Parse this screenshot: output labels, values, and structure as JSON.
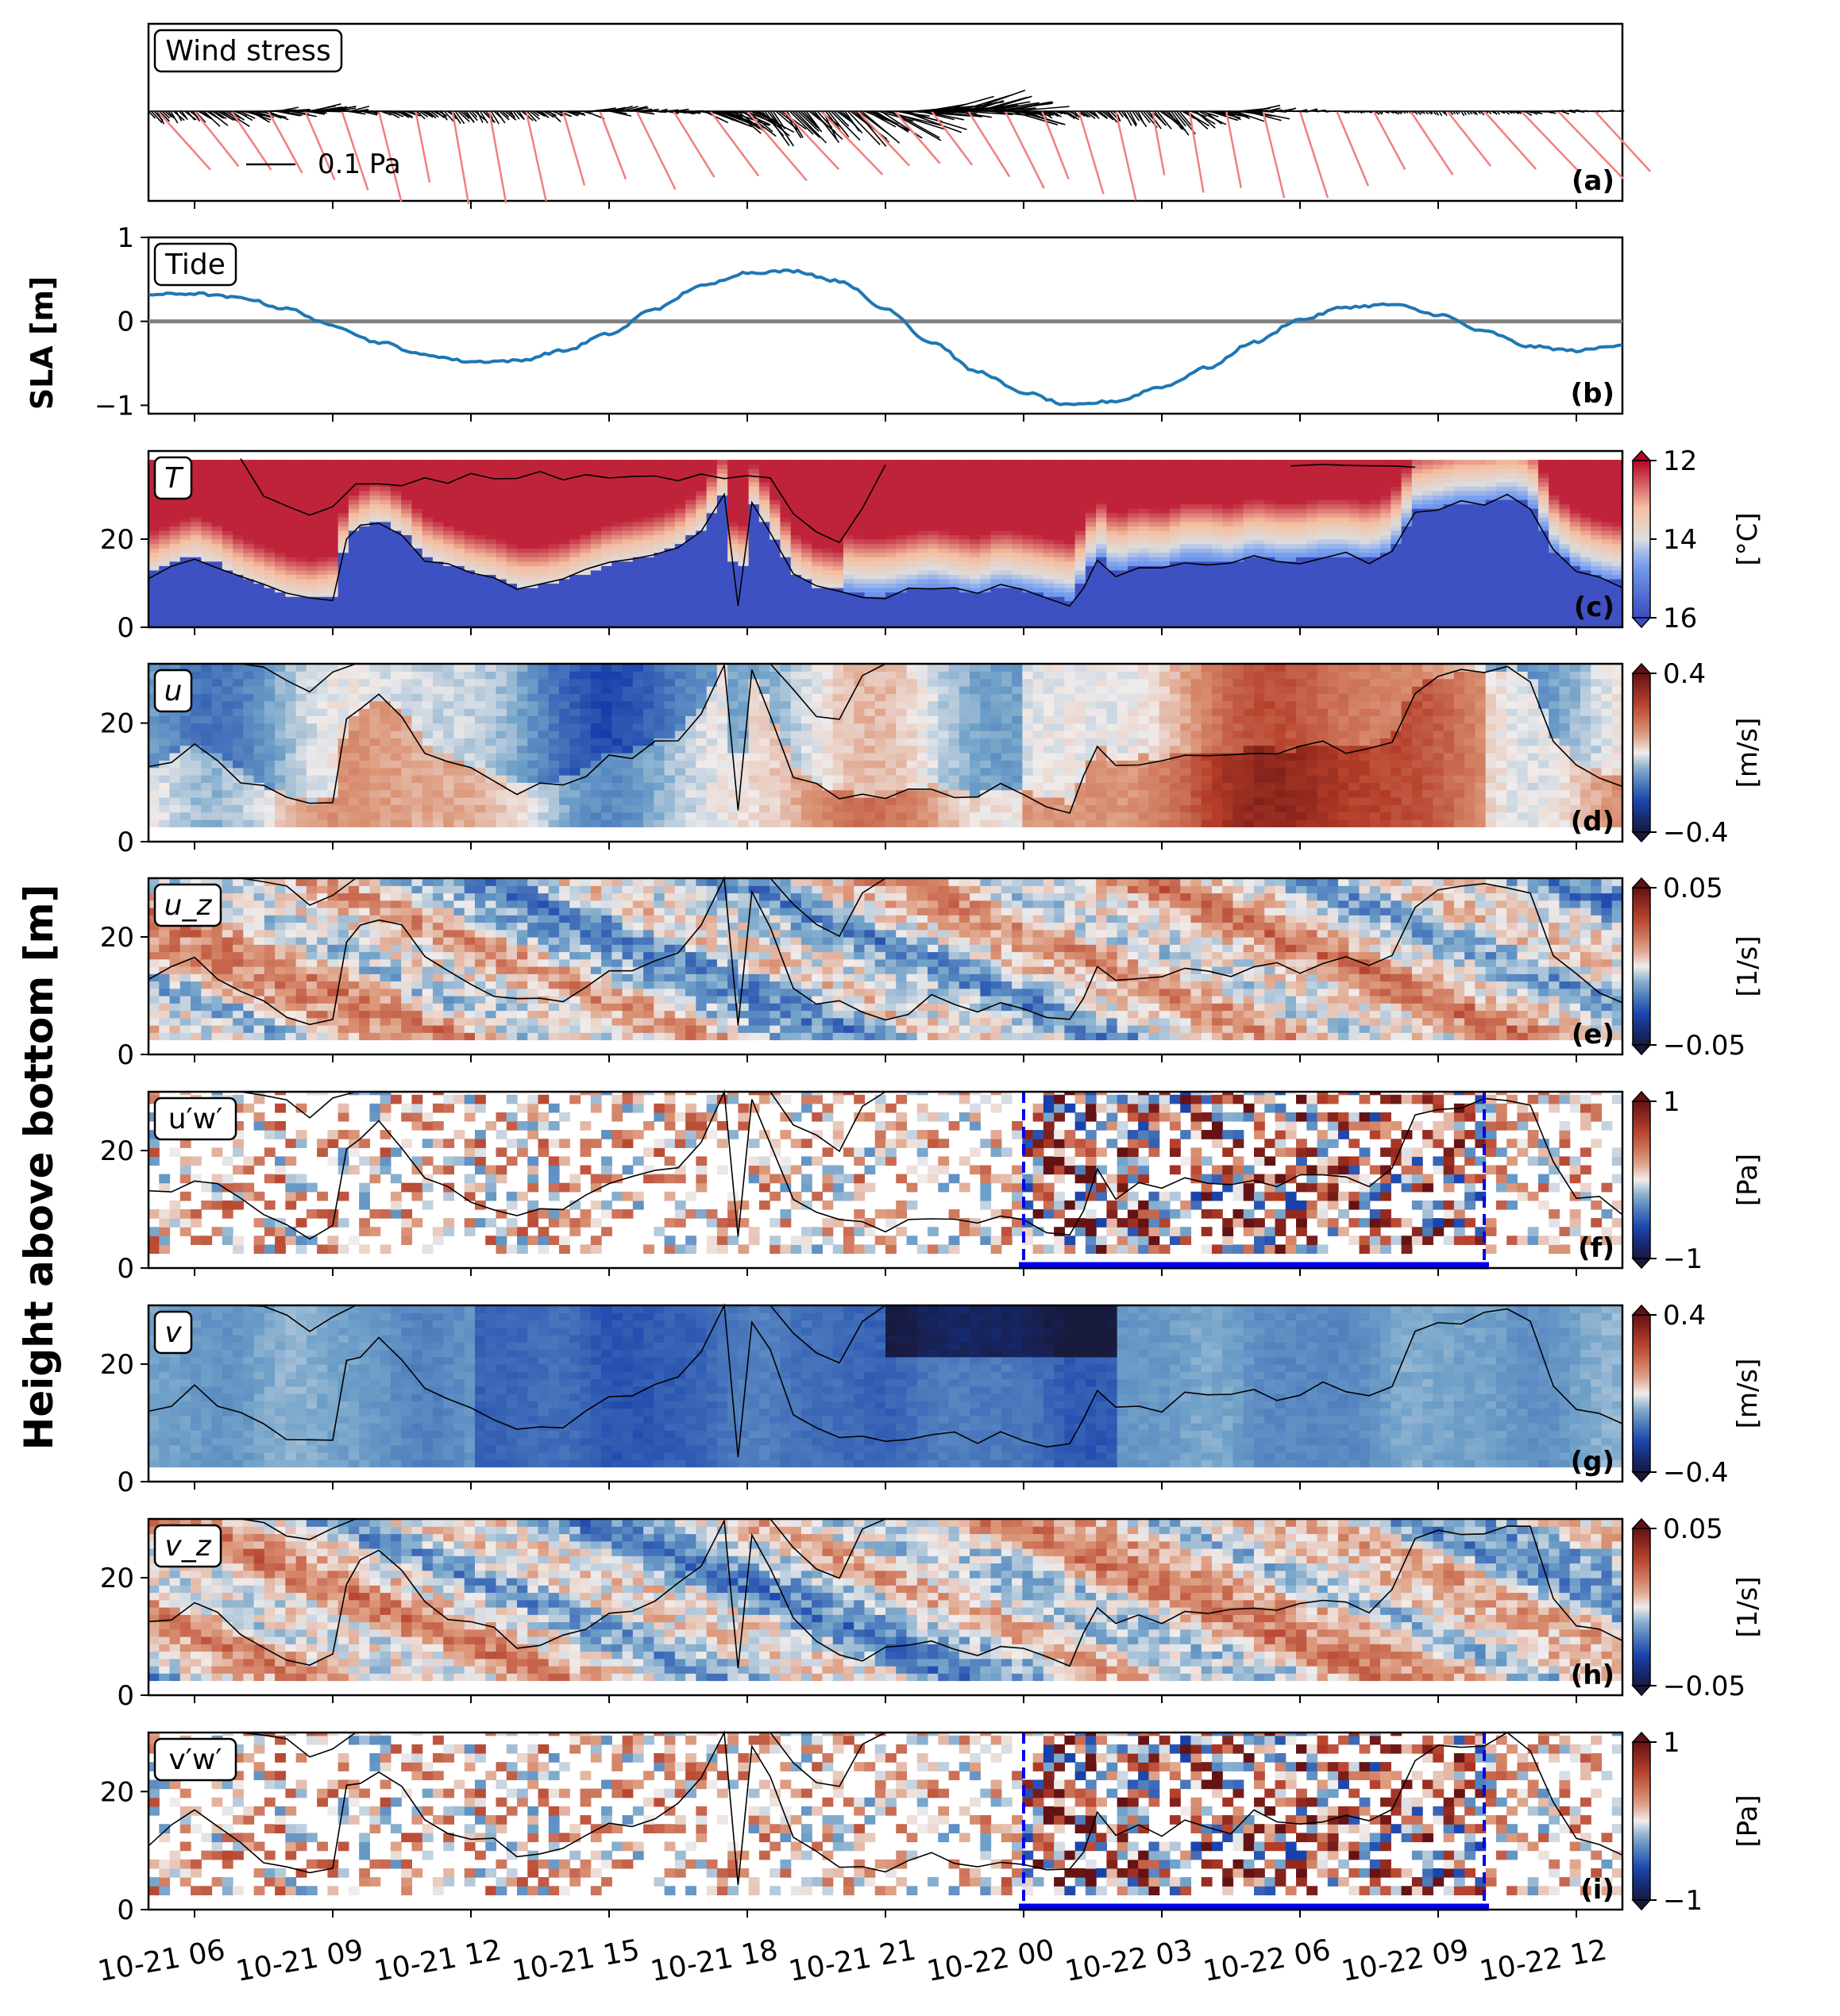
{
  "global_ylabels": {
    "sla": "SLA [m]",
    "height": "Height above bottom [m]"
  },
  "time_axis": {
    "start_hour": 5,
    "end_hour": 37,
    "ticks": [
      {
        "hour": 6,
        "label": "10-21 06"
      },
      {
        "hour": 9,
        "label": "10-21 09"
      },
      {
        "hour": 12,
        "label": "10-21 12"
      },
      {
        "hour": 15,
        "label": "10-21 15"
      },
      {
        "hour": 18,
        "label": "10-21 18"
      },
      {
        "hour": 21,
        "label": "10-21 21"
      },
      {
        "hour": 24,
        "label": "10-22 00"
      },
      {
        "hour": 27,
        "label": "10-22 03"
      },
      {
        "hour": 30,
        "label": "10-22 06"
      },
      {
        "hour": 33,
        "label": "10-22 09"
      },
      {
        "hour": 36,
        "label": "10-22 12"
      }
    ]
  },
  "window_box": {
    "start_hour": 24.0,
    "end_hour": 34.0,
    "color": "#0000ee"
  },
  "chart_data": [
    {
      "id": "a",
      "type": "line",
      "panel_label": "(a)",
      "title": "Wind stress",
      "scale_bar_label": "0.1 Pa",
      "note": "stick plot of wind-stress vectors (black: observed, red: coarse series)"
    },
    {
      "id": "b",
      "type": "line",
      "panel_label": "(b)",
      "title": "Tide",
      "ylim": [
        -1.1,
        1.0
      ],
      "yticks": [
        "1",
        "0",
        "−1"
      ],
      "ytick_values": [
        1,
        0,
        -1
      ],
      "series": [
        {
          "color": "#1f77b4",
          "x": [
            5,
            6,
            7,
            8,
            9,
            10,
            11,
            12,
            13,
            14,
            15,
            16,
            17,
            18,
            19,
            20,
            21,
            22,
            23,
            24,
            25,
            26,
            27,
            28,
            29,
            30,
            31,
            32,
            33,
            34,
            35,
            36,
            37
          ],
          "values": [
            0.32,
            0.33,
            0.28,
            0.15,
            -0.05,
            -0.25,
            -0.4,
            -0.48,
            -0.47,
            -0.35,
            -0.15,
            0.15,
            0.42,
            0.58,
            0.6,
            0.48,
            0.15,
            -0.25,
            -0.6,
            -0.85,
            -1.0,
            -0.95,
            -0.78,
            -0.55,
            -0.25,
            0.02,
            0.17,
            0.2,
            0.08,
            -0.12,
            -0.3,
            -0.35,
            -0.28
          ]
        }
      ],
      "reference_line": {
        "y": 0,
        "color": "#808080"
      }
    },
    {
      "id": "c",
      "type": "heatmap",
      "panel_label": "(c)",
      "title": "T",
      "ylim": [
        0,
        40
      ],
      "yticks": [
        "0",
        "20"
      ],
      "ytick_values": [
        0,
        20
      ],
      "colorbar": {
        "ticks": [
          "12",
          "14",
          "16"
        ],
        "label": "[°C]",
        "cmap": "coolwarm"
      }
    },
    {
      "id": "d",
      "type": "heatmap",
      "panel_label": "(d)",
      "title": "u",
      "ylim": [
        0,
        30
      ],
      "yticks": [
        "0",
        "20"
      ],
      "ytick_values": [
        0,
        20
      ],
      "colorbar": {
        "ticks": [
          "0.4",
          "−0.4"
        ],
        "label": "[m/s]",
        "cmap": "balance"
      }
    },
    {
      "id": "e",
      "type": "heatmap",
      "panel_label": "(e)",
      "title": "u_z",
      "ylim": [
        0,
        30
      ],
      "yticks": [
        "0",
        "20"
      ],
      "ytick_values": [
        0,
        20
      ],
      "colorbar": {
        "ticks": [
          "0.05",
          "−0.05"
        ],
        "label": "[1/s]",
        "cmap": "balance"
      }
    },
    {
      "id": "f",
      "type": "heatmap",
      "panel_label": "(f)",
      "title": "u′w′",
      "ylim": [
        0,
        30
      ],
      "yticks": [
        "0",
        "20"
      ],
      "ytick_values": [
        0,
        20
      ],
      "colorbar": {
        "ticks": [
          "1",
          "−1"
        ],
        "label": "[Pa]",
        "cmap": "balance"
      }
    },
    {
      "id": "g",
      "type": "heatmap",
      "panel_label": "(g)",
      "title": "v",
      "ylim": [
        0,
        30
      ],
      "yticks": [
        "0",
        "20"
      ],
      "ytick_values": [
        0,
        20
      ],
      "colorbar": {
        "ticks": [
          "0.4",
          "−0.4"
        ],
        "label": "[m/s]",
        "cmap": "balance"
      }
    },
    {
      "id": "h",
      "type": "heatmap",
      "panel_label": "(h)",
      "title": "v_z",
      "ylim": [
        0,
        30
      ],
      "yticks": [
        "0",
        "20"
      ],
      "ytick_values": [
        0,
        20
      ],
      "colorbar": {
        "ticks": [
          "0.05",
          "−0.05"
        ],
        "label": "[1/s]",
        "cmap": "balance"
      }
    },
    {
      "id": "i",
      "type": "heatmap",
      "panel_label": "(i)",
      "title": "v′w′",
      "ylim": [
        0,
        30
      ],
      "yticks": [
        "0",
        "20"
      ],
      "ytick_values": [
        0,
        20
      ],
      "colorbar": {
        "ticks": [
          "1",
          "−1"
        ],
        "label": "[Pa]",
        "cmap": "balance"
      }
    }
  ],
  "isotherm_lower": {
    "hours": [
      5,
      5.5,
      6,
      6.5,
      7,
      7.5,
      8,
      8.5,
      9,
      9.3,
      9.6,
      10,
      10.5,
      11,
      11.5,
      12,
      12.5,
      13,
      13.5,
      14,
      14.5,
      15,
      15.5,
      16,
      16.5,
      17,
      17.5,
      17.8,
      18.1,
      18.5,
      19,
      19.5,
      20,
      20.5,
      21,
      21.5,
      22,
      22.5,
      23,
      23.5,
      24,
      24.5,
      25,
      25.3,
      25.6,
      26,
      26.5,
      27,
      27.5,
      28,
      28.5,
      29,
      29.5,
      30,
      30.5,
      31,
      31.5,
      32,
      32.5,
      33,
      33.5,
      34,
      34.5,
      35,
      35.5,
      36,
      36.5,
      37
    ],
    "values": [
      12,
      14,
      16,
      14,
      11,
      9,
      7,
      6,
      7,
      20,
      22,
      24,
      21,
      16,
      14,
      12,
      11,
      9,
      9,
      10,
      12,
      14,
      15,
      16,
      18,
      22,
      30,
      5,
      28,
      22,
      12,
      9,
      8,
      7,
      7,
      8,
      9,
      8,
      7,
      9,
      8,
      7,
      6,
      10,
      16,
      12,
      14,
      13,
      15,
      15,
      14,
      16,
      15,
      15,
      16,
      16,
      15,
      17,
      26,
      27,
      28,
      28,
      29,
      28,
      17,
      13,
      11,
      10
    ]
  },
  "isotherm_upper": {
    "segments": [
      {
        "hours": [
          7,
          7.5,
          8,
          8.5,
          9,
          9.5,
          10,
          10.5,
          11,
          11.5,
          12,
          12.5,
          13,
          13.5,
          14,
          14.5,
          15,
          15.5,
          16,
          16.5,
          17,
          17.5,
          18,
          18.5,
          19,
          19.5,
          20,
          20.5,
          21
        ],
        "values": [
          38,
          30,
          28,
          26,
          28,
          32,
          33,
          32,
          33,
          33,
          34,
          34,
          34,
          35,
          34,
          34,
          34,
          35,
          35,
          34,
          35,
          33,
          35,
          34,
          25,
          22,
          20,
          28,
          36
        ]
      },
      {
        "hours": [
          29.8,
          30.5,
          31,
          31.5,
          32,
          32.5
        ],
        "values": [
          37,
          36,
          36,
          37,
          36,
          37
        ]
      }
    ]
  }
}
